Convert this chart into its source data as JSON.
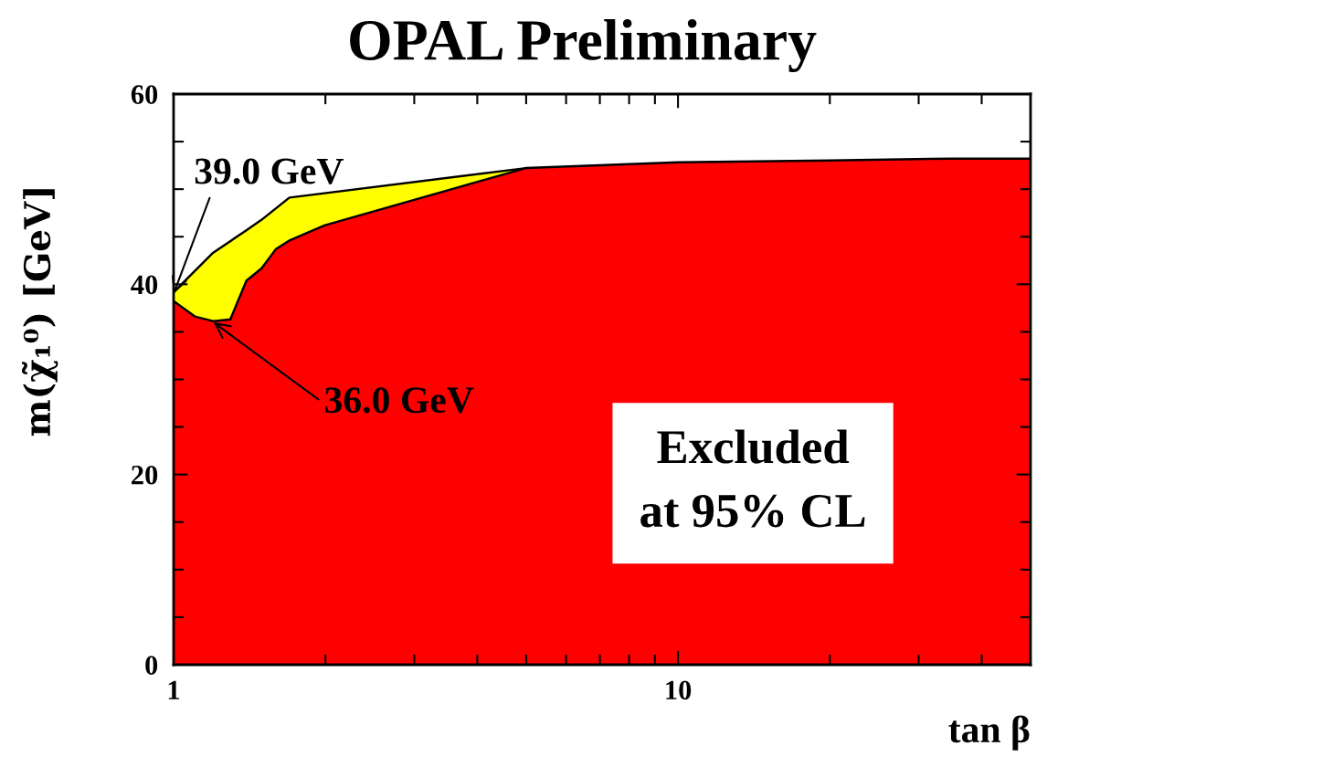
{
  "chart_data": {
    "type": "area",
    "title": "OPAL Preliminary",
    "xlabel": "tan β",
    "ylabel": "m(χ̃₁⁰) [GeV]",
    "log": "x",
    "xlim": [
      1,
      50
    ],
    "ylim": [
      0,
      60
    ],
    "xticks": [
      1,
      {
        "value": 2,
        "label": null
      },
      {
        "value": 3,
        "label": null
      },
      {
        "value": 4,
        "label": null
      },
      {
        "value": 5,
        "label": null
      },
      {
        "value": 6,
        "label": null
      },
      {
        "value": 7,
        "label": null
      },
      {
        "value": 8,
        "label": null
      },
      {
        "value": 9,
        "label": null
      },
      10,
      {
        "value": 20,
        "label": null
      },
      {
        "value": 30,
        "label": null
      },
      {
        "value": 40,
        "label": null
      }
    ],
    "yticks": [
      0,
      {
        "value": 5,
        "label": null
      },
      {
        "value": 10,
        "label": null
      },
      {
        "value": 15,
        "label": null
      },
      20,
      {
        "value": 25,
        "label": null
      },
      {
        "value": 30,
        "label": null
      },
      {
        "value": 35,
        "label": null
      },
      40,
      {
        "value": 45,
        "label": null
      },
      {
        "value": 50,
        "label": null
      },
      {
        "value": 55,
        "label": null
      },
      60
    ],
    "series": [
      {
        "color": "#ffff00",
        "x": [
          1,
          1.2,
          1.4,
          1.5,
          1.7,
          5
        ],
        "values": [
          39.0,
          43.2,
          45.6,
          46.7,
          49.0,
          52.1
        ]
      },
      {
        "color": "#ff0000",
        "x": [
          1,
          1.1,
          1.2,
          1.3,
          1.4,
          1.5,
          1.6,
          1.7,
          2,
          5,
          10,
          20,
          35,
          50
        ],
        "values": [
          38.1,
          36.5,
          36.0,
          36.2,
          40.3,
          41.6,
          43.6,
          44.5,
          46.1,
          52.1,
          52.7,
          52.9,
          53.1,
          53.1
        ]
      }
    ],
    "annotations": [
      {
        "text": "39.0 GeV",
        "x": 1,
        "y": 39.0
      },
      {
        "text": "36.0 GeV",
        "x": 1.2,
        "y": 36.0
      },
      "Excluded\nat 95% CL"
    ],
    "grid": false,
    "legend": false
  }
}
